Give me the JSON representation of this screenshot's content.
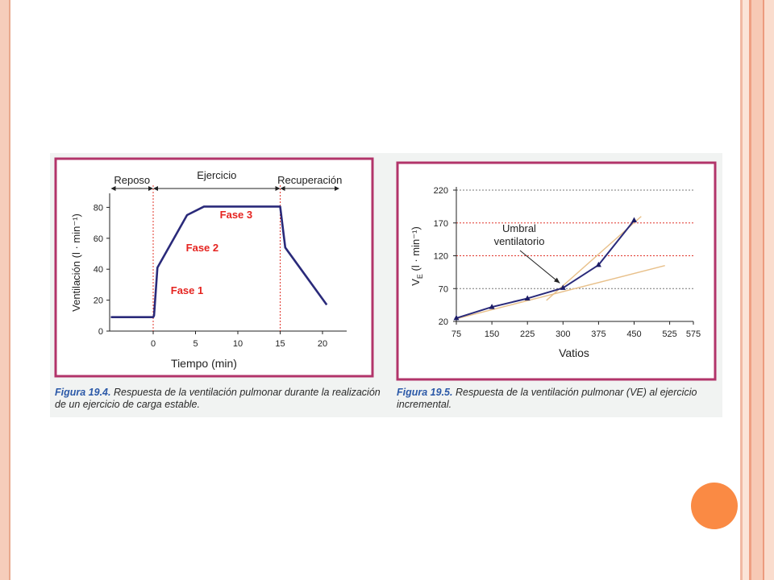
{
  "colors": {
    "frame": "#b2346a",
    "line": "#2a2a7a",
    "phase_text": "#e52420",
    "caption_label": "#2b59a8",
    "dotted_red": "#e0342a",
    "tangent": "#e8c08a",
    "accent_dot": "#fa8a44"
  },
  "chart_data": [
    {
      "type": "line",
      "xlabel": "Tiempo (min)",
      "ylabel": "Ventilación (l · min⁻¹)",
      "xlim": [
        -5.5,
        22.5
      ],
      "ylim": [
        0,
        90
      ],
      "x_ticks": [
        "0",
        "5",
        "10",
        "15",
        "20"
      ],
      "y_ticks": [
        "0",
        "20",
        "40",
        "60",
        "80"
      ],
      "series": [
        {
          "x": [
            -5,
            0,
            0.1,
            0.5,
            4,
            6,
            15,
            15.6,
            20.5
          ],
          "y": [
            9,
            9,
            10,
            41,
            75,
            80.5,
            80.5,
            54,
            17
          ]
        }
      ],
      "regions": [
        {
          "label": "Reposo",
          "from": -5,
          "to": 0
        },
        {
          "label": "Ejercicio",
          "from": 0,
          "to": 15
        },
        {
          "label": "Recuperación",
          "from": 15,
          "to": 22
        }
      ],
      "annotations": [
        {
          "text": "Fase 1",
          "x": 4,
          "y": 24
        },
        {
          "text": "Fase 2",
          "x": 5.8,
          "y": 51.5
        },
        {
          "text": "Fase 3",
          "x": 9.8,
          "y": 73
        }
      ],
      "caption_label": "Figura 19.4.",
      "caption_text": "Respuesta de la ventilación pulmonar durante la realización de un ejercicio de carga estable."
    },
    {
      "type": "line",
      "xlabel": "Vatios",
      "ylabel_main": "V",
      "ylabel_sub": "E",
      "ylabel_rest": " (l · min⁻¹)",
      "xlim": [
        75,
        575
      ],
      "ylim": [
        20,
        220
      ],
      "x_ticks": [
        "75",
        "150",
        "225",
        "300",
        "375",
        "450",
        "525",
        "575"
      ],
      "y_ticks": [
        "20",
        "70",
        "120",
        "170",
        "220"
      ],
      "series": [
        {
          "x": [
            75,
            150,
            225,
            300,
            375,
            450
          ],
          "y": [
            25,
            42,
            55,
            71,
            106,
            174
          ]
        }
      ],
      "gridlines": [
        {
          "y": 220,
          "style": "dotted-gray"
        },
        {
          "y": 170,
          "style": "dotted-red"
        },
        {
          "y": 120,
          "style": "dotted-red"
        },
        {
          "y": 70,
          "style": "dotted-gray"
        }
      ],
      "annotation": {
        "line1": "Umbral",
        "line2": "ventilatorio",
        "arrow_to": [
          300,
          71
        ]
      },
      "caption_label": "Figura 19.5.",
      "caption_text": "Respuesta de la ventilación pulmonar (VE) al ejercicio incremental."
    }
  ]
}
